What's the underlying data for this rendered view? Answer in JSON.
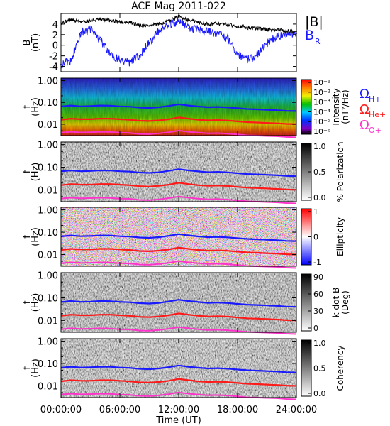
{
  "title": "ACE Mag 2011-022",
  "xlabel": "Time (UT)",
  "x_ticks": [
    "00:00:00",
    "06:00:00",
    "12:00:00",
    "18:00:00",
    "24:00:00"
  ],
  "colors": {
    "bmag": "#000000",
    "br": "#1a1aff",
    "h_plus": "#1a1aff",
    "he_plus": "#ff1a1a",
    "o_plus": "#ff33cc"
  },
  "chart_data": [
    {
      "type": "line",
      "panel": "field",
      "ylabel": [
        "B",
        "(nT)"
      ],
      "ylim": [
        -5,
        6
      ],
      "y_ticks": [
        4,
        2,
        0,
        -2,
        -4
      ],
      "legend": {
        "bmag": "|B|",
        "br_main": "B",
        "br_sub": "R"
      },
      "x_hours": [
        0,
        1,
        2,
        3,
        4,
        5,
        6,
        7,
        8,
        9,
        10,
        11,
        12,
        13,
        14,
        15,
        16,
        17,
        18,
        19,
        20,
        21,
        22,
        23,
        24
      ],
      "series": [
        {
          "name": "|B|",
          "values": [
            4.2,
            4.8,
            4.5,
            4.6,
            4.9,
            4.7,
            4.4,
            4.3,
            3.8,
            3.7,
            4.0,
            4.6,
            5.4,
            4.8,
            4.3,
            4.0,
            4.1,
            3.9,
            3.6,
            3.3,
            3.2,
            3.0,
            2.9,
            2.7,
            2.6
          ]
        },
        {
          "name": "BR",
          "values": [
            -3.6,
            -3.0,
            2.4,
            3.0,
            1.0,
            -1.5,
            -2.8,
            -3.2,
            -2.0,
            0.5,
            2.8,
            3.8,
            4.6,
            3.2,
            3.0,
            2.6,
            2.2,
            1.2,
            -1.6,
            -2.8,
            -1.8,
            0.4,
            1.6,
            2.1,
            2.2
          ]
        }
      ]
    },
    {
      "type": "heatmap",
      "panel": "intensity",
      "ylabel": [
        "f",
        "(Hz)"
      ],
      "y_ticks": [
        "1.00",
        "0.10",
        "0.01"
      ],
      "colorbar": {
        "label": "Intensity (nT²/Hz)",
        "label_line1": "Intensity",
        "label_line2": "(nT²/Hz)",
        "ticks": [
          "10⁻¹",
          "10⁻²",
          "10⁻³",
          "10⁻⁴",
          "10⁻⁵",
          "10⁻⁶"
        ],
        "scale": "log"
      },
      "legend": [
        {
          "main": "Ω",
          "sub": "H+",
          "color": "#1a1aff"
        },
        {
          "main": "Ω",
          "sub": "He+",
          "color": "#ff1a1a"
        },
        {
          "main": "Ω",
          "sub": "O+",
          "color": "#ff33cc"
        }
      ]
    },
    {
      "type": "heatmap",
      "panel": "polarization",
      "ylabel": [
        "f",
        "(Hz)"
      ],
      "y_ticks": [
        "1.00",
        "0.10",
        "0.01"
      ],
      "colorbar": {
        "label": "% Polarization",
        "ticks": [
          "1.0",
          "0.5",
          "0.0"
        ]
      }
    },
    {
      "type": "heatmap",
      "panel": "ellipticity",
      "ylabel": [
        "f",
        "(Hz)"
      ],
      "y_ticks": [
        "1.00",
        "0.10",
        "0.01"
      ],
      "colorbar": {
        "label": "Ellipticity",
        "ticks": [
          "1",
          "0",
          "-1"
        ]
      }
    },
    {
      "type": "heatmap",
      "panel": "kdotb",
      "ylabel": [
        "f",
        "(Hz)"
      ],
      "y_ticks": [
        "1.00",
        "0.10",
        "0.01"
      ],
      "colorbar": {
        "label": "k dot B",
        "label_line1": "k dot B",
        "label_line2": "(Deg)",
        "ticks": [
          "90",
          "60",
          "30",
          "0"
        ]
      }
    },
    {
      "type": "heatmap",
      "panel": "coherency",
      "ylabel": [
        "f",
        "(Hz)"
      ],
      "y_ticks": [
        "1.00",
        "0.10",
        "0.01"
      ],
      "colorbar": {
        "label": "Coherency",
        "ticks": [
          "1.0",
          "0.5",
          "0.0"
        ]
      }
    }
  ],
  "gyrofrequency_lines": {
    "x_hours": [
      0,
      1,
      2,
      3,
      4,
      5,
      6,
      7,
      8,
      9,
      10,
      11,
      12,
      13,
      14,
      15,
      16,
      17,
      18,
      19,
      20,
      21,
      22,
      23,
      24
    ],
    "H+": [
      0.065,
      0.072,
      0.066,
      0.068,
      0.072,
      0.071,
      0.066,
      0.064,
      0.058,
      0.056,
      0.06,
      0.069,
      0.082,
      0.072,
      0.065,
      0.06,
      0.062,
      0.059,
      0.054,
      0.05,
      0.048,
      0.046,
      0.044,
      0.041,
      0.04
    ],
    "He+": [
      0.016,
      0.018,
      0.017,
      0.017,
      0.018,
      0.018,
      0.017,
      0.016,
      0.0145,
      0.014,
      0.015,
      0.017,
      0.0205,
      0.018,
      0.016,
      0.015,
      0.0155,
      0.0148,
      0.0135,
      0.0125,
      0.012,
      0.0115,
      0.011,
      0.0103,
      0.01
    ],
    "O+": [
      0.0041,
      0.0045,
      0.0042,
      0.0043,
      0.0045,
      0.0044,
      0.0041,
      0.004,
      0.0036,
      0.0035,
      0.0038,
      0.0043,
      0.0051,
      0.0045,
      0.0041,
      0.0038,
      0.0039,
      0.0037,
      0.0034,
      0.0031,
      0.003,
      0.0029,
      0.0028,
      0.0026,
      0.0025
    ]
  }
}
